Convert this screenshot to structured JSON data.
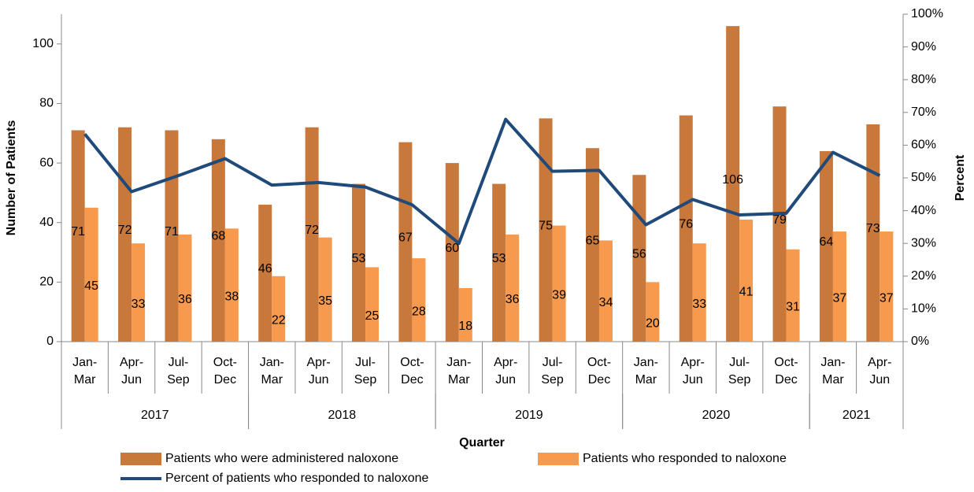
{
  "chart_data": {
    "type": "bar",
    "x_label": "Quarter",
    "y_label": "Number of Patients",
    "y2_label": "Percent",
    "categories": [
      "Jan-Mar",
      "Apr-Jun",
      "Jul-Sep",
      "Oct-Dec",
      "Jan-Mar",
      "Apr-Jun",
      "Jul-Sep",
      "Oct-Dec",
      "Jan-Mar",
      "Apr-Jun",
      "Jul-Sep",
      "Oct-Dec",
      "Jan-Mar",
      "Apr-Jun",
      "Jul-Sep",
      "Oct-Dec",
      "Jan-Mar",
      "Apr-Jun"
    ],
    "groups": [
      {
        "label": "2017",
        "span": 4
      },
      {
        "label": "2018",
        "span": 4
      },
      {
        "label": "2019",
        "span": 4
      },
      {
        "label": "2020",
        "span": 4
      },
      {
        "label": "2021",
        "span": 2
      }
    ],
    "series": [
      {
        "name": "Patients who were administered naloxone",
        "type": "bar",
        "color": "#c8783a",
        "values": [
          71,
          72,
          71,
          68,
          46,
          72,
          53,
          67,
          60,
          53,
          75,
          65,
          56,
          76,
          106,
          79,
          64,
          73
        ]
      },
      {
        "name": "Patients who responded to naloxone",
        "type": "bar",
        "color": "#f79a4e",
        "values": [
          45,
          33,
          36,
          38,
          22,
          35,
          25,
          28,
          18,
          36,
          39,
          34,
          20,
          33,
          41,
          31,
          37,
          37
        ]
      },
      {
        "name": "Percent of patients who responded to naloxone",
        "type": "line",
        "axis": "y2",
        "color": "#1f4a7a",
        "values": [
          63.4,
          45.8,
          50.7,
          55.9,
          47.8,
          48.6,
          47.2,
          41.8,
          30.0,
          67.9,
          52.0,
          52.3,
          35.7,
          43.4,
          38.7,
          39.2,
          57.8,
          50.7
        ]
      }
    ],
    "ylim": [
      0,
      110
    ],
    "yticks": [
      0,
      20,
      40,
      60,
      80,
      100
    ],
    "y2lim": [
      0,
      100
    ],
    "y2ticks": [
      {
        "value": 0,
        "label": "0%"
      },
      {
        "value": 10,
        "label": "10%"
      },
      {
        "value": 20,
        "label": "20%"
      },
      {
        "value": 30,
        "label": "30%"
      },
      {
        "value": 40,
        "label": "40%"
      },
      {
        "value": 50,
        "label": "50%"
      },
      {
        "value": 60,
        "label": "60%"
      },
      {
        "value": 70,
        "label": "70%"
      },
      {
        "value": 80,
        "label": "80%"
      },
      {
        "value": 90,
        "label": "90%"
      },
      {
        "value": 100,
        "label": "100%"
      }
    ],
    "grid": false
  }
}
